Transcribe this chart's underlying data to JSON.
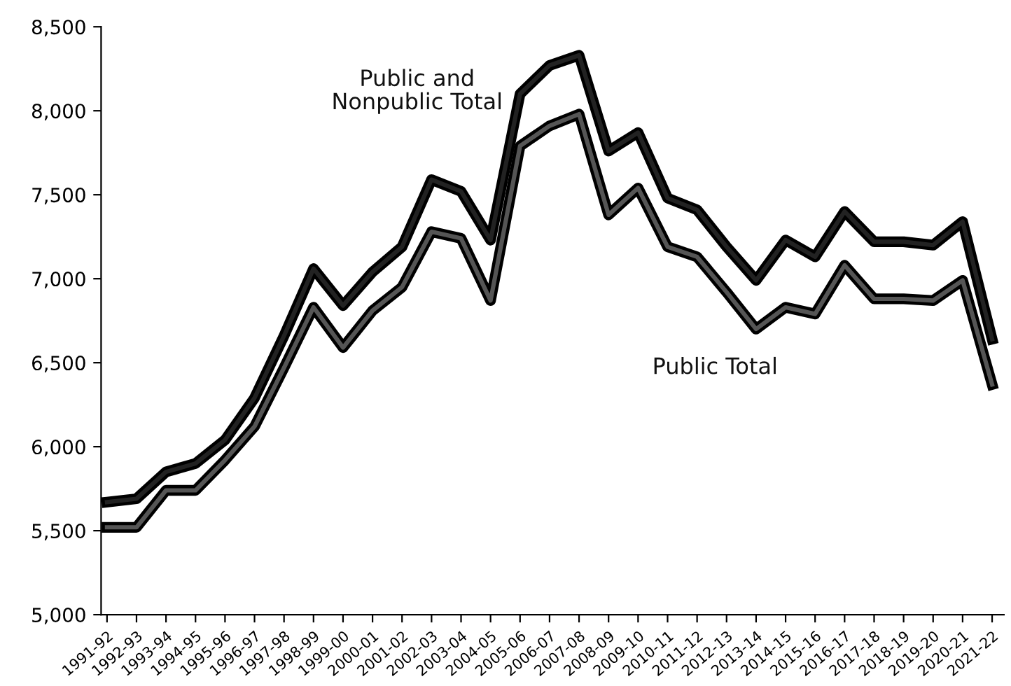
{
  "chart_data": {
    "type": "line",
    "categories": [
      "1991-92",
      "1992-93",
      "1993-94",
      "1994-95",
      "1995-96",
      "1996-97",
      "1997-98",
      "1998-99",
      "1999-00",
      "2000-01",
      "2001-02",
      "2002-03",
      "2003-04",
      "2004-05",
      "2005-06",
      "2006-07",
      "2007-08",
      "2008-09",
      "2009-10",
      "2010-11",
      "2011-12",
      "2012-13",
      "2013-14",
      "2014-15",
      "2015-16",
      "2016-17",
      "2017-18",
      "2018-19",
      "2019-20",
      "2020-21",
      "2021-22"
    ],
    "series": [
      {
        "name": "Public and\nNonpublic Total",
        "color": "#222222",
        "values": [
          5670,
          5690,
          5850,
          5900,
          6040,
          6290,
          6660,
          7060,
          6840,
          7040,
          7190,
          7590,
          7520,
          7230,
          8100,
          8270,
          8330,
          7760,
          7870,
          7480,
          7410,
          7190,
          6990,
          7230,
          7130,
          7400,
          7220,
          7220,
          7200,
          7340,
          6640
        ]
      },
      {
        "name": "Public Total",
        "color": "#555555",
        "values": [
          5520,
          5520,
          5740,
          5740,
          5920,
          6120,
          6470,
          6830,
          6590,
          6810,
          6950,
          7280,
          7240,
          6870,
          7790,
          7910,
          7980,
          7380,
          7540,
          7190,
          7130,
          6920,
          6700,
          6830,
          6790,
          7080,
          6880,
          6880,
          6870,
          6990,
          6370
        ]
      }
    ],
    "ylim": [
      5000,
      8500
    ],
    "yticks": [
      {
        "value": 5000,
        "label": "5,000"
      },
      {
        "value": 5500,
        "label": "5,500"
      },
      {
        "value": 6000,
        "label": "6,000"
      },
      {
        "value": 6500,
        "label": "6,500"
      },
      {
        "value": 7000,
        "label": "7,000"
      },
      {
        "value": 7500,
        "label": "7,500"
      },
      {
        "value": 8000,
        "label": "8,000"
      },
      {
        "value": 8500,
        "label": "8,500"
      }
    ],
    "grid": false,
    "legend": false,
    "marker": "none",
    "line_style": "solid"
  }
}
